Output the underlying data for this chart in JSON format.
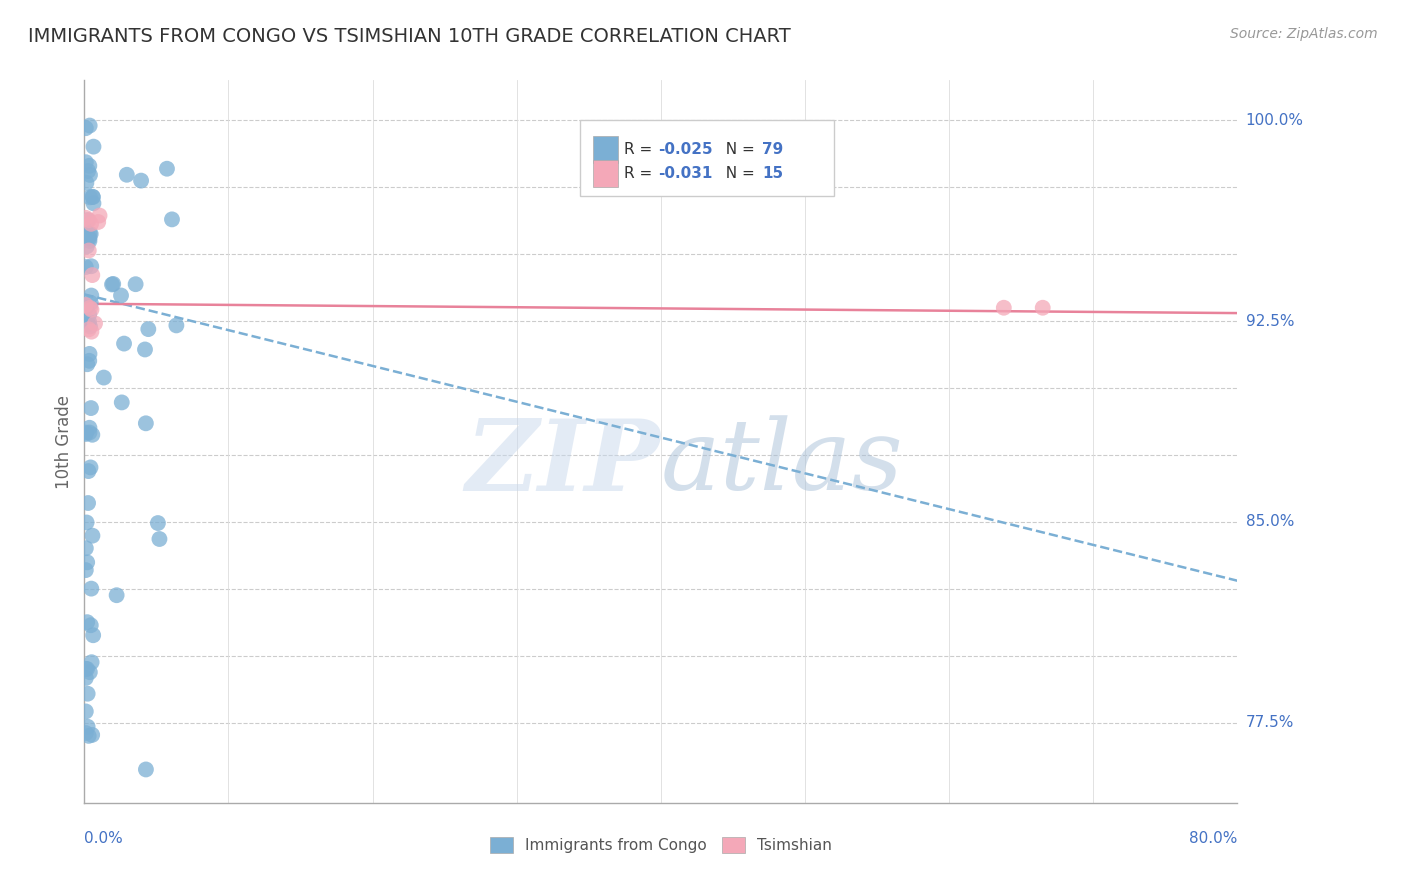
{
  "title": "IMMIGRANTS FROM CONGO VS TSIMSHIAN 10TH GRADE CORRELATION CHART",
  "source": "Source: ZipAtlas.com",
  "ylabel": "10th Grade",
  "xlim": [
    0.0,
    0.8
  ],
  "ylim": [
    0.745,
    1.015
  ],
  "blue_color": "#7BAFD4",
  "pink_color": "#F4A8B8",
  "pink_line_color": "#E8829A",
  "blue_r": -0.025,
  "blue_n": 79,
  "pink_r": -0.031,
  "pink_n": 15,
  "legend_labels": [
    "Immigrants from Congo",
    "Tsimshian"
  ],
  "watermark_zip": "ZIP",
  "watermark_atlas": "atlas",
  "y_ticks_labeled": [
    0.775,
    0.85,
    0.925,
    1.0
  ],
  "y_ticks_labeled_str": [
    "77.5%",
    "85.0%",
    "92.5%",
    "100.0%"
  ],
  "y_ticks_all": [
    0.775,
    0.8,
    0.825,
    0.85,
    0.875,
    0.9,
    0.925,
    0.95,
    0.975,
    1.0
  ],
  "blue_trend_x0": 0.0,
  "blue_trend_x1": 0.8,
  "blue_trend_y0": 0.935,
  "blue_trend_y1": 0.828,
  "pink_trend_x0": 0.0,
  "pink_trend_x1": 0.8,
  "pink_trend_y0": 0.9315,
  "pink_trend_y1": 0.928
}
